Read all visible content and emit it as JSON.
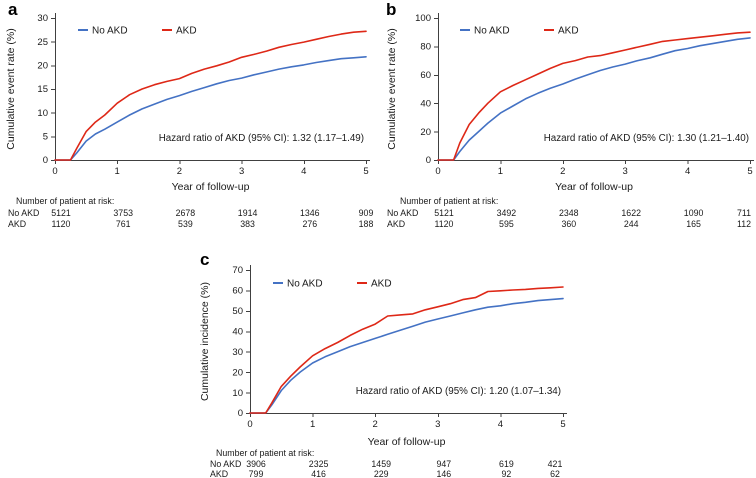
{
  "colors": {
    "background": "#ffffff",
    "axis": "#404040",
    "text": "#1a1a1a",
    "no_akd": "#4472c4",
    "akd": "#de2817"
  },
  "chart_data": [
    {
      "type": "line",
      "panel_label": "a",
      "ylabel": "Cumulative event rate (%)",
      "xlabel": "Year of follow-up",
      "ylim": [
        0,
        30
      ],
      "yticks": [
        0,
        5,
        10,
        15,
        20,
        25,
        30
      ],
      "xlim": [
        0,
        5
      ],
      "xticks": [
        0,
        1,
        2,
        3,
        4,
        5
      ],
      "grid": false,
      "legend_position": "top-left-inside",
      "annotation": "Hazard ratio of AKD (95% CI): 1.32 (1.17–1.49)",
      "x": [
        0,
        0.25,
        0.35,
        0.5,
        0.65,
        0.8,
        1.0,
        1.2,
        1.4,
        1.6,
        1.8,
        2.0,
        2.2,
        2.4,
        2.6,
        2.8,
        3.0,
        3.2,
        3.4,
        3.6,
        3.8,
        4.0,
        4.2,
        4.4,
        4.6,
        4.8,
        5.0
      ],
      "series": [
        {
          "name": "No AKD",
          "color": "#4472c4",
          "values": [
            0,
            0,
            1.5,
            4,
            5.5,
            6.5,
            8,
            9.5,
            10.8,
            11.8,
            12.8,
            13.6,
            14.5,
            15.3,
            16.1,
            16.8,
            17.3,
            18.0,
            18.6,
            19.2,
            19.7,
            20.1,
            20.6,
            21.0,
            21.4,
            21.6,
            21.8
          ]
        },
        {
          "name": "AKD",
          "color": "#de2817",
          "values": [
            0,
            0,
            2.5,
            6,
            8,
            9.5,
            12,
            13.8,
            15.0,
            15.9,
            16.6,
            17.2,
            18.3,
            19.2,
            19.9,
            20.7,
            21.7,
            22.3,
            23.0,
            23.8,
            24.4,
            24.9,
            25.5,
            26.1,
            26.6,
            27.0,
            27.2
          ]
        }
      ],
      "at_risk": {
        "title": "Number of patient at risk:",
        "rows": [
          {
            "label": "No AKD",
            "values": [
              "5121",
              "3753",
              "2678",
              "1914",
              "1346",
              "909"
            ]
          },
          {
            "label": "AKD",
            "values": [
              "1120",
              "761",
              "539",
              "383",
              "276",
              "188"
            ]
          }
        ]
      }
    },
    {
      "type": "line",
      "panel_label": "b",
      "ylabel": "Cumulative event rate (%)",
      "xlabel": "Year of follow-up",
      "ylim": [
        0,
        100
      ],
      "yticks": [
        0,
        20,
        40,
        60,
        80,
        100
      ],
      "xlim": [
        0,
        5
      ],
      "xticks": [
        0,
        1,
        2,
        3,
        4,
        5
      ],
      "grid": false,
      "legend_position": "top-left-inside",
      "annotation": "Hazard ratio of AKD (95% CI): 1.30 (1.21–1.40)",
      "x": [
        0,
        0.25,
        0.35,
        0.5,
        0.65,
        0.8,
        1.0,
        1.2,
        1.4,
        1.6,
        1.8,
        2.0,
        2.2,
        2.4,
        2.6,
        2.8,
        3.0,
        3.2,
        3.4,
        3.6,
        3.8,
        4.0,
        4.2,
        4.4,
        4.6,
        4.8,
        5.0
      ],
      "series": [
        {
          "name": "No AKD",
          "color": "#4472c4",
          "values": [
            0,
            0,
            6,
            14,
            20,
            26,
            33,
            38,
            43,
            47,
            50.5,
            53.5,
            57,
            60,
            63,
            65.5,
            67.5,
            70,
            72,
            74.5,
            77,
            78.5,
            80.5,
            82,
            83.5,
            85,
            86
          ]
        },
        {
          "name": "AKD",
          "color": "#de2817",
          "values": [
            0,
            0,
            12,
            25,
            33,
            40,
            48,
            52.5,
            56.5,
            60.5,
            64.5,
            68,
            70,
            72.5,
            73.5,
            75.5,
            77.5,
            79.5,
            81.5,
            83.5,
            84.5,
            85.5,
            86.5,
            87.5,
            88.5,
            89.5,
            90
          ]
        }
      ],
      "at_risk": {
        "title": "Number of patient at risk:",
        "rows": [
          {
            "label": "No AKD",
            "values": [
              "5121",
              "3492",
              "2348",
              "1622",
              "1090",
              "711"
            ]
          },
          {
            "label": "AKD",
            "values": [
              "1120",
              "595",
              "360",
              "244",
              "165",
              "112"
            ]
          }
        ]
      }
    },
    {
      "type": "line",
      "panel_label": "c",
      "ylabel": "Cumulative incidence (%)",
      "xlabel": "Year of follow-up",
      "ylim": [
        0,
        70
      ],
      "yticks": [
        0,
        10,
        20,
        30,
        40,
        50,
        60,
        70
      ],
      "xlim": [
        0,
        5
      ],
      "xticks": [
        0,
        1,
        2,
        3,
        4,
        5
      ],
      "grid": false,
      "legend_position": "top-left-inside",
      "annotation": "Hazard ratio of AKD (95% CI): 1.20 (1.07–1.34)",
      "x": [
        0,
        0.25,
        0.35,
        0.5,
        0.65,
        0.8,
        1.0,
        1.2,
        1.4,
        1.6,
        1.8,
        2.0,
        2.2,
        2.4,
        2.6,
        2.8,
        3.0,
        3.2,
        3.4,
        3.6,
        3.8,
        4.0,
        4.2,
        4.4,
        4.6,
        4.8,
        5.0
      ],
      "series": [
        {
          "name": "No AKD",
          "color": "#4472c4",
          "values": [
            0,
            0,
            4,
            11,
            16,
            20,
            24.5,
            27.5,
            30,
            32.5,
            34.5,
            36.5,
            38.5,
            40.5,
            42.5,
            44.5,
            46,
            47.5,
            49,
            50.5,
            51.8,
            52.5,
            53.5,
            54.2,
            55,
            55.5,
            56
          ]
        },
        {
          "name": "AKD",
          "color": "#de2817",
          "values": [
            0,
            0,
            5,
            13,
            18,
            22.5,
            28,
            31.5,
            34.5,
            38,
            41,
            43.5,
            47.5,
            48,
            48.5,
            50.5,
            52,
            53.5,
            55.5,
            56.5,
            59.5,
            59.8,
            60.2,
            60.5,
            61,
            61.3,
            61.7
          ]
        }
      ],
      "at_risk": {
        "title": "Number of patient at risk:",
        "rows": [
          {
            "label": "No AKD",
            "values": [
              "3906",
              "2325",
              "1459",
              "947",
              "619",
              "421"
            ]
          },
          {
            "label": "AKD",
            "values": [
              "799",
              "416",
              "229",
              "146",
              "92",
              "62"
            ]
          }
        ]
      }
    }
  ]
}
